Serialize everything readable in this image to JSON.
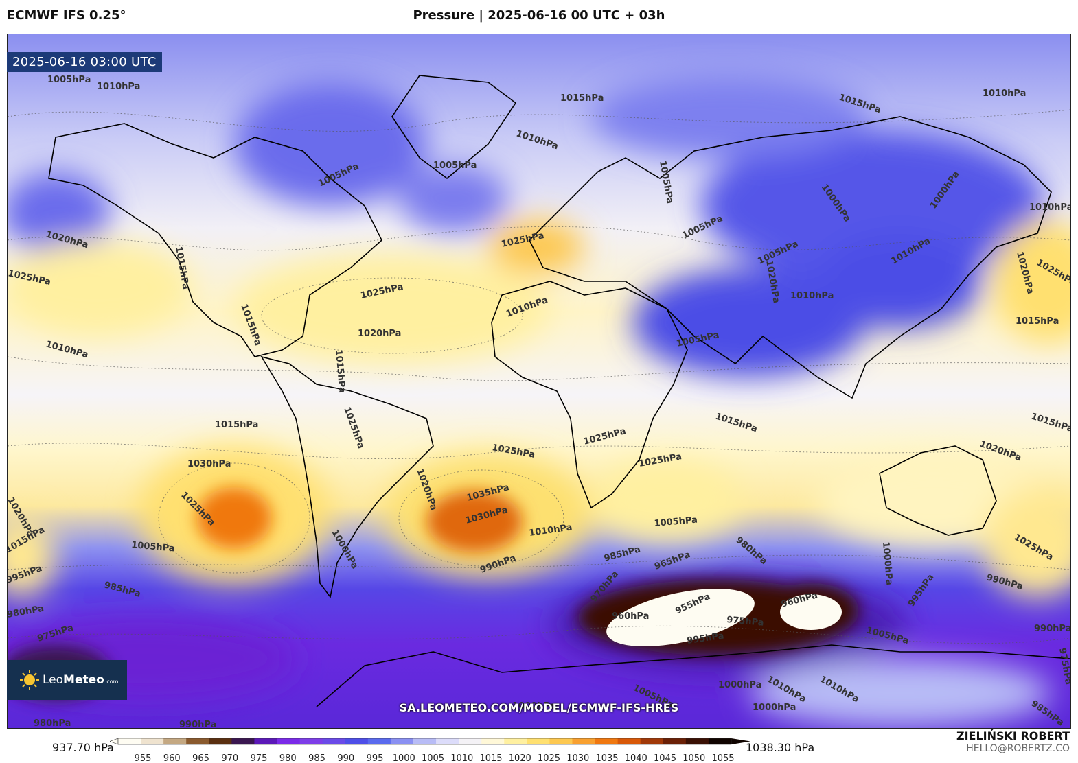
{
  "header": {
    "model": "ECMWF IFS 0.25°",
    "title": "Pressure | 2025-06-16 00 UTC + 03h"
  },
  "valid_time": "2025-06-16 03:00 UTC",
  "watermark_url": "SA.LEOMETEO.COM/MODEL/ECMWF-IFS-HRES",
  "logo": {
    "name_light": "Leo",
    "name_bold": "Meteo",
    "suffix": ".com",
    "icon": "sun-icon"
  },
  "author": {
    "name": "ZIELIŃSKI ROBERT",
    "email": "HELLO@ROBERTZ.CO"
  },
  "colorbar": {
    "min_label": "937.70 hPa",
    "max_label": "1038.30 hPa",
    "ticks": [
      "955",
      "960",
      "965",
      "970",
      "975",
      "980",
      "985",
      "990",
      "995",
      "1000",
      "1005",
      "1010",
      "1015",
      "1020",
      "1025",
      "1030",
      "1035",
      "1040",
      "1045",
      "1050",
      "1055"
    ],
    "colors": [
      "#fefcf2",
      "#efe3cf",
      "#c4a882",
      "#8a5a2e",
      "#5a2f10",
      "#3a1650",
      "#5b18b8",
      "#7a2ae8",
      "#7d3de8",
      "#6a4ae8",
      "#4e4ee8",
      "#5a6aee",
      "#8a90f2",
      "#b8bcf6",
      "#dcdcfa",
      "#f4f2f6",
      "#fff8d8",
      "#fff0a0",
      "#ffe070",
      "#fdc850",
      "#f8a030",
      "#f07810",
      "#d85808",
      "#a03808",
      "#6a2006",
      "#3a1004",
      "#100400"
    ]
  },
  "isobar_labels": [
    "1005hPa",
    "1010hPa",
    "1015hPa",
    "1015hPa",
    "1010hPa",
    "1010hPa",
    "1005hPa",
    "1005hPa",
    "1005hPa",
    "1000hPa",
    "1000hPa",
    "1010hPa",
    "1020hPa",
    "1025hPa",
    "1025hPa",
    "1025hPa",
    "1020hPa",
    "1020hPa",
    "1025hPa",
    "1010hPa",
    "1015hPa",
    "1010hPa",
    "1015hPa",
    "1015hPa",
    "1005hPa",
    "1005hPa",
    "1005hPa",
    "1010hPa",
    "1020hPa",
    "1010hPa",
    "1015hPa",
    "1015hPa",
    "1015hPa",
    "1020hPa",
    "1015hPa",
    "1025hPa",
    "1030hPa",
    "1025hPa",
    "1025hPa",
    "1035hPa",
    "1030hPa",
    "1020hPa",
    "1025hPa",
    "1025hPa",
    "1010hPa",
    "1005hPa",
    "1005hPa",
    "1000hPa",
    "990hPa",
    "985hPa",
    "990hPa",
    "975hPa",
    "980hPa",
    "985hPa",
    "965hPa",
    "970hPa",
    "955hPa",
    "960hPa",
    "960hPa",
    "980hPa",
    "975hPa",
    "995hPa",
    "1005hPa",
    "1000hPa",
    "1000hPa",
    "1010hPa",
    "1010hPa",
    "1005hPa",
    "1000hPa",
    "995hPa",
    "990hPa",
    "985hPa",
    "975hPa",
    "980hPa",
    "990hPa",
    "1000hPa",
    "1025hPa",
    "1020hPa",
    "995hPa",
    "1015hPa"
  ]
}
